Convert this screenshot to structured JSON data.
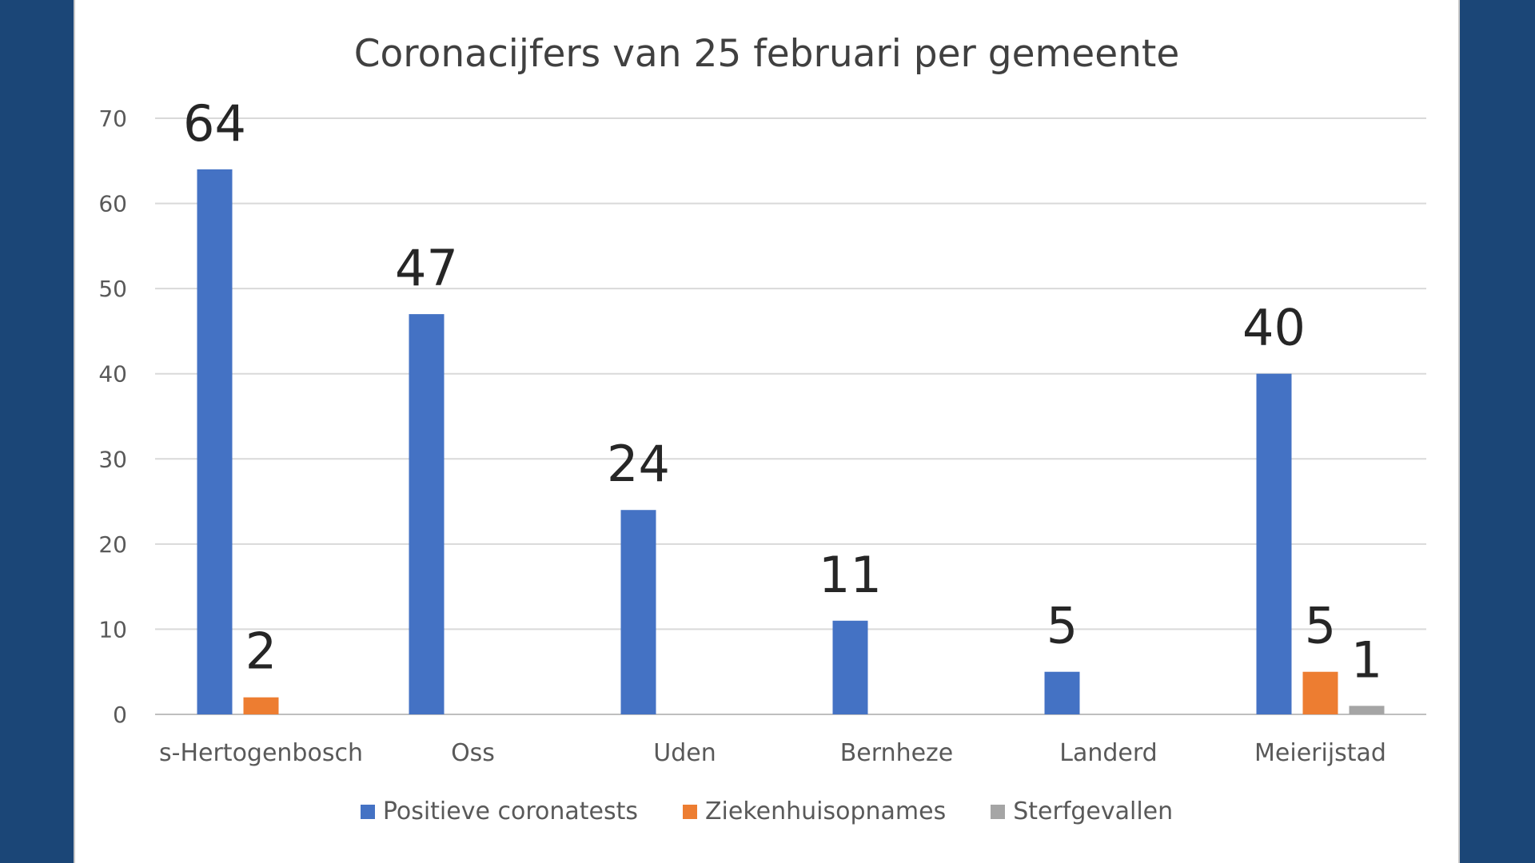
{
  "chart_data": {
    "type": "bar",
    "title": "Coronacijfers van 25 februari per gemeente",
    "categories": [
      "s-Hertogenbosch",
      "Oss",
      "Uden",
      "Bernheze",
      "Landerd",
      "Meierijstad"
    ],
    "series": [
      {
        "name": "Positieve coronatests",
        "color": "#4472c4",
        "values": [
          64,
          47,
          24,
          11,
          5,
          40
        ],
        "labels": [
          "64",
          "47",
          "24",
          "11",
          "5",
          "40"
        ]
      },
      {
        "name": "Ziekenhuisopnames",
        "color": "#ed7d31",
        "values": [
          2,
          null,
          null,
          null,
          null,
          5
        ],
        "labels": [
          "2",
          "",
          "",
          "",
          "",
          "5"
        ]
      },
      {
        "name": "Sterfgevallen",
        "color": "#a5a5a5",
        "values": [
          null,
          null,
          null,
          null,
          null,
          1
        ],
        "labels": [
          "",
          "",
          "",
          "",
          "",
          "1"
        ]
      }
    ],
    "ylim": [
      0,
      70
    ],
    "yticks": [
      0,
      10,
      20,
      30,
      40,
      50,
      60,
      70
    ],
    "ytick_labels": [
      "0",
      "10",
      "20",
      "30",
      "40",
      "50",
      "60",
      "70"
    ],
    "grid": true,
    "legend_position": "bottom"
  }
}
